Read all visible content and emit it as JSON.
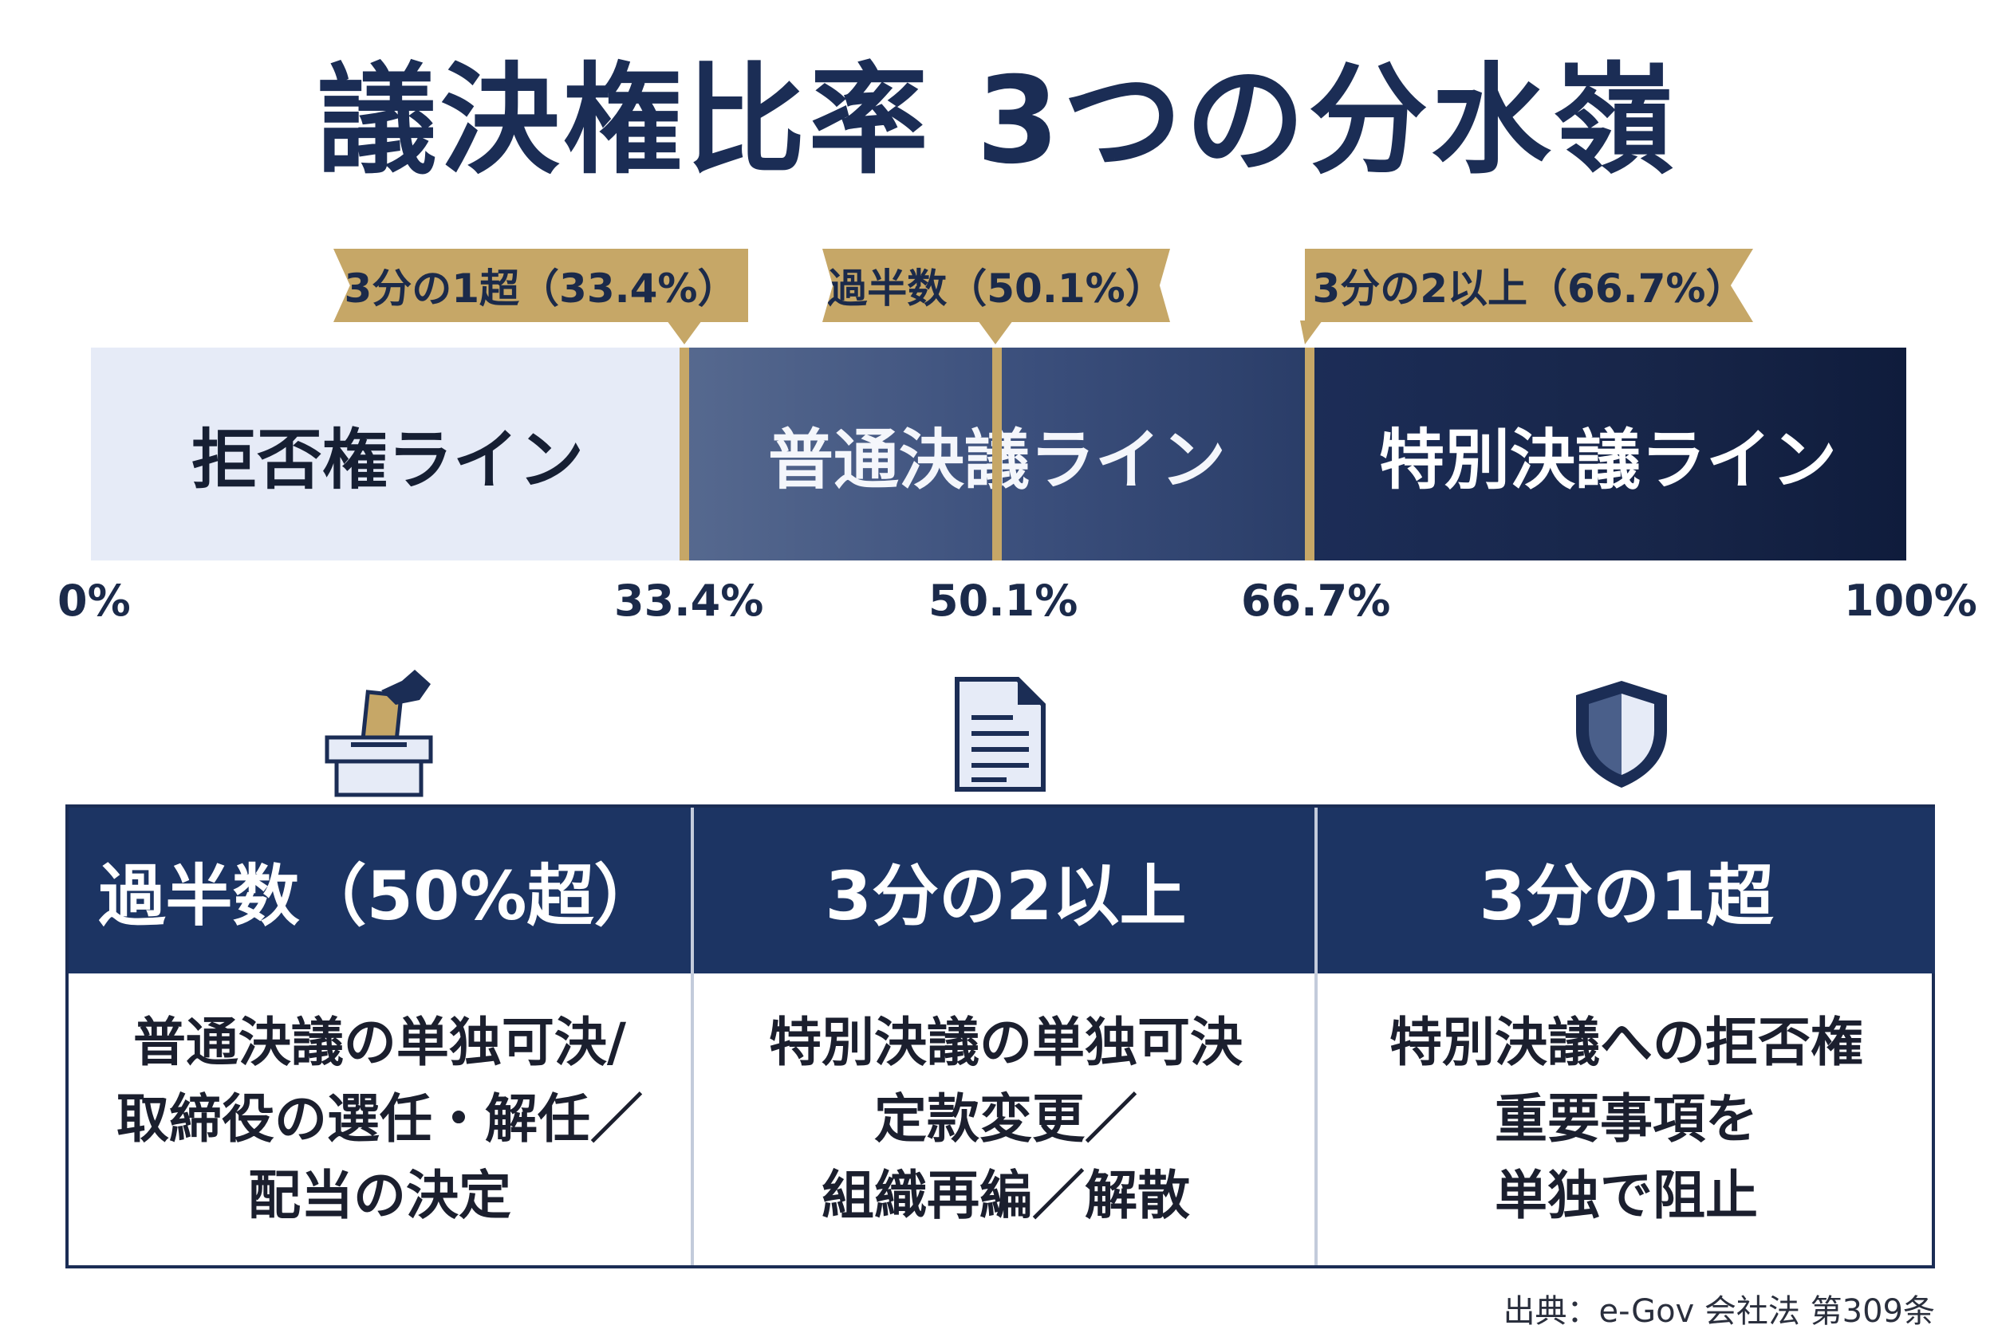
{
  "title": "議決権比率 3つの分水嶺",
  "flags": [
    {
      "label": "3分の1超（33.4%）"
    },
    {
      "label": "過半数（50.1%）"
    },
    {
      "label": "3分の2以上（66.7%）"
    }
  ],
  "bar_segments": [
    {
      "label": "拒否権ライン"
    },
    {
      "label": "普通決議ライン"
    },
    {
      "label": "特別決議ライン"
    }
  ],
  "ticks": [
    "0%",
    "33.4%",
    "50.1%",
    "66.7%",
    "100%"
  ],
  "icons": [
    "ballot-box-icon",
    "document-icon",
    "shield-icon"
  ],
  "table": [
    {
      "header": "過半数（50%超）",
      "lines": [
        "普通決議の単独可決/",
        "取締役の選任・解任／",
        "配当の決定"
      ]
    },
    {
      "header": "3分の2以上",
      "lines": [
        "特別決議の単独可決",
        "定款変更／",
        "組織再編／解散"
      ]
    },
    {
      "header": "3分の1超",
      "lines": [
        "特別決議への拒否権",
        "重要事項を",
        "単独で阻止"
      ]
    }
  ],
  "source": "出典：e-Gov 会社法 第309条",
  "colors": {
    "navy": "#1c3463",
    "gold": "#c6a767",
    "light": "#e6ebf7"
  }
}
